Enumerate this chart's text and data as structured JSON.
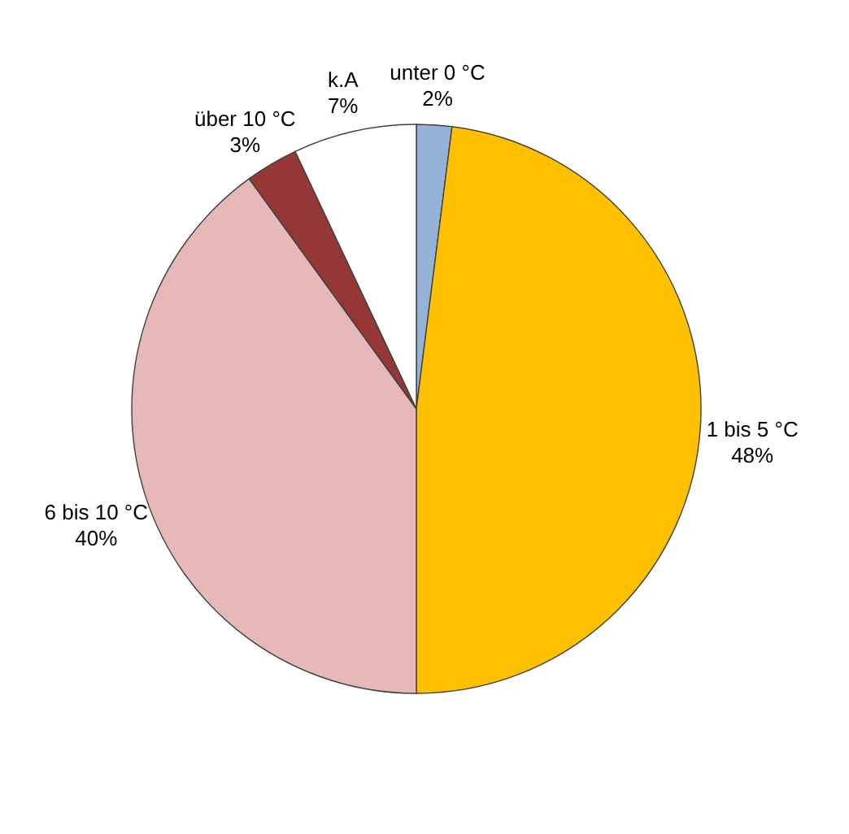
{
  "chart_data": {
    "type": "pie",
    "categories": [
      "unter 0 °C",
      "1 bis 5 °C",
      "6 bis 10 °C",
      "über 10 °C",
      "k.A"
    ],
    "values": [
      2,
      48,
      40,
      3,
      7
    ],
    "value_labels": [
      "2%",
      "48%",
      "40%",
      "3%",
      "7%"
    ],
    "colors": [
      "#95b3d7",
      "#ffc000",
      "#e6b9b8",
      "#953735",
      "#ffffff"
    ],
    "legend": false
  }
}
